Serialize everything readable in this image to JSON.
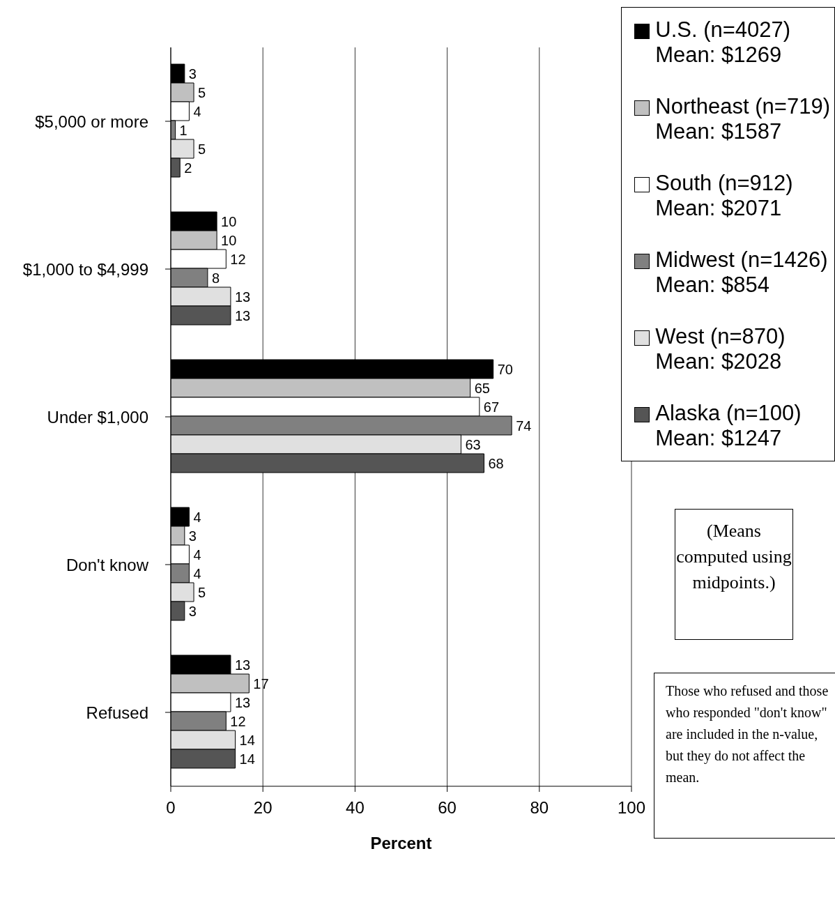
{
  "chart_data": {
    "type": "bar",
    "orientation": "horizontal",
    "xlabel": "Percent",
    "categories": [
      "$5,000 or more",
      "$1,000 to $4,999",
      "Under $1,000",
      "Don't know",
      "Refused"
    ],
    "series": [
      {
        "name": "U.S. (n=4027)\nMean: $1269",
        "color": "#000000",
        "values": [
          3,
          10,
          70,
          4,
          13
        ]
      },
      {
        "name": "Northeast (n=719)\nMean: $1587",
        "color": "#c0c0c0",
        "values": [
          5,
          10,
          65,
          3,
          17
        ]
      },
      {
        "name": "South (n=912)\nMean: $2071",
        "color": "#ffffff",
        "values": [
          4,
          12,
          67,
          4,
          13
        ]
      },
      {
        "name": "Midwest (n=1426)\nMean: $854",
        "color": "#808080",
        "values": [
          1,
          8,
          74,
          4,
          12
        ]
      },
      {
        "name": "West (n=870)\nMean: $2028",
        "color": "#e0e0e0",
        "values": [
          5,
          13,
          63,
          5,
          14
        ]
      },
      {
        "name": "Alaska (n=100)\nMean: $1247",
        "color": "#555555",
        "values": [
          2,
          13,
          68,
          3,
          14
        ]
      }
    ],
    "xlim": [
      0,
      100
    ],
    "xticks": [
      0,
      20,
      40,
      60,
      80,
      100
    ],
    "grid": "x",
    "legend": "top right",
    "data_labels": true,
    "annotations": [
      "(Means computed using midpoints.)",
      "Those who refused and those who responded \"don't know\" are included in the n-value, but they do not affect the mean."
    ]
  }
}
